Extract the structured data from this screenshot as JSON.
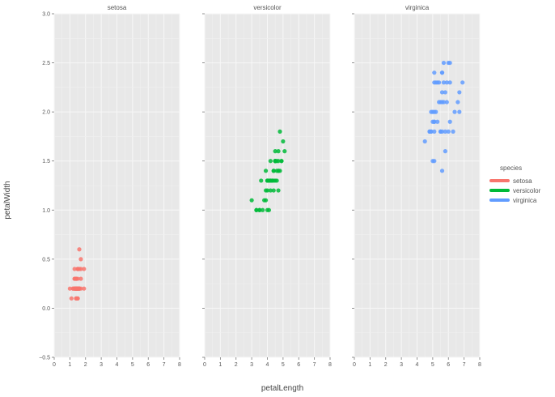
{
  "chart_data": {
    "type": "scatter",
    "xlabel": "petalLength",
    "ylabel": "petalWidth",
    "xlim": [
      0,
      8
    ],
    "ylim": [
      -0.5,
      3.0
    ],
    "x_ticks": [
      0,
      1,
      2,
      3,
      4,
      5,
      6,
      7,
      8
    ],
    "y_ticks": [
      -0.5,
      0.0,
      0.5,
      1.0,
      1.5,
      2.0,
      2.5,
      3.0
    ],
    "y_tick_labels": [
      "−0.5",
      "0.0",
      "0.5",
      "1.0",
      "1.5",
      "2.0",
      "2.5",
      "3.0"
    ],
    "grid": true,
    "legend": {
      "title": "species",
      "placement": "right",
      "entries": [
        {
          "name": "setosa",
          "color": "#f8766d"
        },
        {
          "name": "versicolor",
          "color": "#00ba38"
        },
        {
          "name": "virginica",
          "color": "#619cff"
        }
      ]
    },
    "facets": [
      {
        "title": "setosa",
        "color": "#f8766d",
        "points": [
          [
            1.4,
            0.2
          ],
          [
            1.4,
            0.2
          ],
          [
            1.3,
            0.2
          ],
          [
            1.5,
            0.2
          ],
          [
            1.4,
            0.2
          ],
          [
            1.7,
            0.4
          ],
          [
            1.4,
            0.3
          ],
          [
            1.5,
            0.2
          ],
          [
            1.4,
            0.2
          ],
          [
            1.5,
            0.1
          ],
          [
            1.5,
            0.2
          ],
          [
            1.6,
            0.2
          ],
          [
            1.4,
            0.1
          ],
          [
            1.1,
            0.1
          ],
          [
            1.2,
            0.2
          ],
          [
            1.5,
            0.4
          ],
          [
            1.3,
            0.4
          ],
          [
            1.4,
            0.3
          ],
          [
            1.7,
            0.3
          ],
          [
            1.5,
            0.3
          ],
          [
            1.7,
            0.2
          ],
          [
            1.5,
            0.4
          ],
          [
            1.0,
            0.2
          ],
          [
            1.7,
            0.5
          ],
          [
            1.9,
            0.2
          ],
          [
            1.6,
            0.2
          ],
          [
            1.6,
            0.4
          ],
          [
            1.5,
            0.2
          ],
          [
            1.4,
            0.2
          ],
          [
            1.6,
            0.2
          ],
          [
            1.6,
            0.2
          ],
          [
            1.5,
            0.4
          ],
          [
            1.5,
            0.1
          ],
          [
            1.4,
            0.2
          ],
          [
            1.5,
            0.2
          ],
          [
            1.2,
            0.2
          ],
          [
            1.3,
            0.2
          ],
          [
            1.4,
            0.1
          ],
          [
            1.3,
            0.2
          ],
          [
            1.5,
            0.2
          ],
          [
            1.3,
            0.3
          ],
          [
            1.3,
            0.3
          ],
          [
            1.3,
            0.2
          ],
          [
            1.6,
            0.6
          ],
          [
            1.9,
            0.4
          ],
          [
            1.4,
            0.3
          ],
          [
            1.6,
            0.2
          ],
          [
            1.4,
            0.2
          ],
          [
            1.5,
            0.2
          ],
          [
            1.4,
            0.2
          ]
        ]
      },
      {
        "title": "versicolor",
        "color": "#00ba38",
        "points": [
          [
            4.7,
            1.4
          ],
          [
            4.5,
            1.5
          ],
          [
            4.9,
            1.5
          ],
          [
            4.0,
            1.3
          ],
          [
            4.6,
            1.5
          ],
          [
            4.5,
            1.3
          ],
          [
            4.7,
            1.6
          ],
          [
            3.3,
            1.0
          ],
          [
            4.6,
            1.3
          ],
          [
            3.9,
            1.4
          ],
          [
            3.5,
            1.0
          ],
          [
            4.2,
            1.5
          ],
          [
            4.0,
            1.0
          ],
          [
            4.7,
            1.4
          ],
          [
            3.6,
            1.3
          ],
          [
            4.4,
            1.4
          ],
          [
            4.5,
            1.5
          ],
          [
            4.1,
            1.0
          ],
          [
            4.5,
            1.5
          ],
          [
            3.9,
            1.1
          ],
          [
            4.8,
            1.8
          ],
          [
            4.0,
            1.3
          ],
          [
            4.9,
            1.5
          ],
          [
            4.7,
            1.2
          ],
          [
            4.3,
            1.3
          ],
          [
            4.4,
            1.4
          ],
          [
            4.8,
            1.4
          ],
          [
            5.0,
            1.7
          ],
          [
            4.5,
            1.5
          ],
          [
            3.5,
            1.0
          ],
          [
            3.8,
            1.1
          ],
          [
            3.7,
            1.0
          ],
          [
            3.9,
            1.2
          ],
          [
            5.1,
            1.6
          ],
          [
            4.5,
            1.5
          ],
          [
            4.5,
            1.6
          ],
          [
            4.7,
            1.5
          ],
          [
            4.4,
            1.3
          ],
          [
            4.1,
            1.3
          ],
          [
            4.0,
            1.3
          ],
          [
            4.4,
            1.2
          ],
          [
            4.6,
            1.4
          ],
          [
            4.0,
            1.2
          ],
          [
            3.3,
            1.0
          ],
          [
            4.2,
            1.3
          ],
          [
            4.2,
            1.2
          ],
          [
            4.2,
            1.3
          ],
          [
            4.3,
            1.3
          ],
          [
            3.0,
            1.1
          ],
          [
            4.1,
            1.3
          ]
        ]
      },
      {
        "title": "virginica",
        "color": "#619cff",
        "points": [
          [
            6.0,
            2.5
          ],
          [
            5.1,
            1.9
          ],
          [
            5.9,
            2.1
          ],
          [
            5.6,
            1.8
          ],
          [
            5.8,
            2.2
          ],
          [
            6.6,
            2.1
          ],
          [
            4.5,
            1.7
          ],
          [
            6.3,
            1.8
          ],
          [
            5.8,
            1.8
          ],
          [
            6.1,
            2.5
          ],
          [
            5.1,
            2.0
          ],
          [
            5.3,
            1.9
          ],
          [
            5.5,
            2.1
          ],
          [
            5.0,
            2.0
          ],
          [
            5.1,
            2.4
          ],
          [
            5.3,
            2.3
          ],
          [
            5.5,
            1.8
          ],
          [
            6.7,
            2.2
          ],
          [
            6.9,
            2.3
          ],
          [
            5.0,
            1.5
          ],
          [
            5.7,
            2.3
          ],
          [
            4.9,
            2.0
          ],
          [
            6.7,
            2.0
          ],
          [
            4.9,
            1.8
          ],
          [
            5.7,
            2.1
          ],
          [
            6.0,
            1.8
          ],
          [
            4.8,
            1.8
          ],
          [
            4.9,
            1.8
          ],
          [
            5.6,
            2.1
          ],
          [
            5.8,
            1.6
          ],
          [
            6.1,
            1.9
          ],
          [
            6.4,
            2.0
          ],
          [
            5.6,
            2.2
          ],
          [
            5.1,
            1.5
          ],
          [
            5.6,
            1.4
          ],
          [
            6.1,
            2.3
          ],
          [
            5.6,
            2.4
          ],
          [
            5.5,
            1.8
          ],
          [
            4.8,
            1.8
          ],
          [
            5.4,
            2.1
          ],
          [
            5.6,
            2.4
          ],
          [
            5.1,
            2.3
          ],
          [
            5.1,
            1.9
          ],
          [
            5.9,
            2.3
          ],
          [
            5.7,
            2.5
          ],
          [
            5.2,
            2.3
          ],
          [
            5.0,
            1.9
          ],
          [
            5.2,
            2.0
          ],
          [
            5.4,
            2.3
          ],
          [
            5.1,
            1.8
          ]
        ]
      }
    ]
  }
}
